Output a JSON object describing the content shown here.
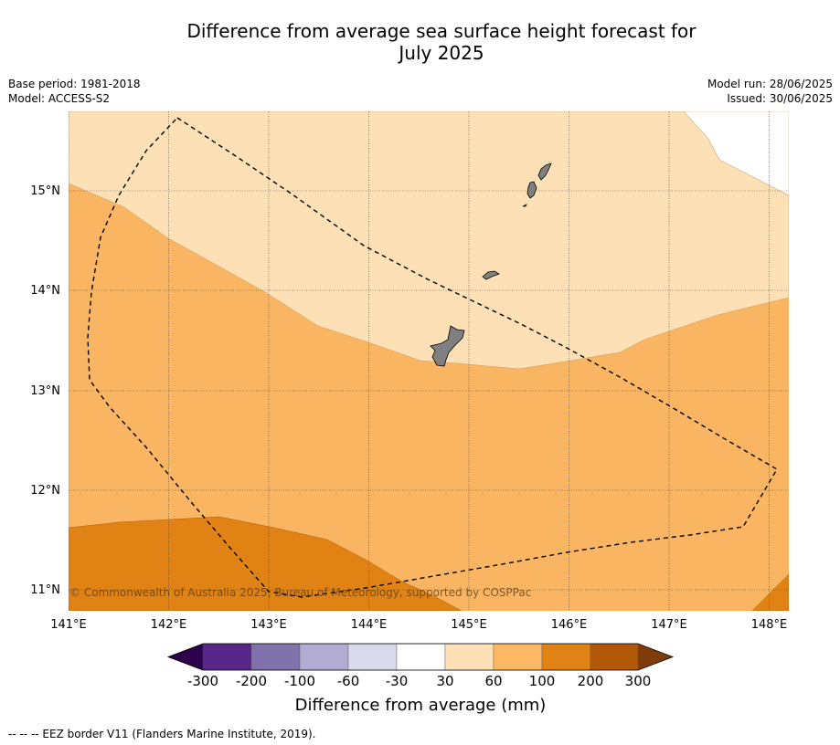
{
  "title": {
    "line1": "Difference from average sea surface height forecast for",
    "line2": "July 2025"
  },
  "meta": {
    "base_period": "Base period: 1981-2018",
    "model": "Model: ACCESS-S2",
    "model_run": "Model run: 28/06/2025",
    "issued": "Issued: 30/06/2025"
  },
  "map": {
    "lat_labels": [
      "11°N",
      "12°N",
      "13°N",
      "14°N",
      "15°N"
    ],
    "lon_labels": [
      "141°E",
      "142°E",
      "143°E",
      "144°E",
      "145°E",
      "146°E",
      "147°E",
      "148°E"
    ],
    "copyright": "© Commonwealth of Australia 2025, Bureau of Meteorology, supported by COSPPac",
    "colors": {
      "land": "#808080",
      "band_30_60": "#fde0b6",
      "band_60_100": "#f9b561",
      "band_100_200": "#e08214"
    }
  },
  "colorbar": {
    "labels": [
      "-300",
      "-200",
      "-100",
      "-60",
      "-30",
      "30",
      "60",
      "100",
      "200",
      "300"
    ],
    "colors": [
      "#2d004b",
      "#542788",
      "#8073ac",
      "#b2abd2",
      "#d8daeb",
      "#ffffff",
      "#fee0b6",
      "#fdb863",
      "#e08214",
      "#b35806",
      "#7f3b08"
    ],
    "title": "Difference from average (mm)"
  },
  "footnote": "--  --  -- EEZ border V11 (Flanders Marine Institute, 2019)."
}
